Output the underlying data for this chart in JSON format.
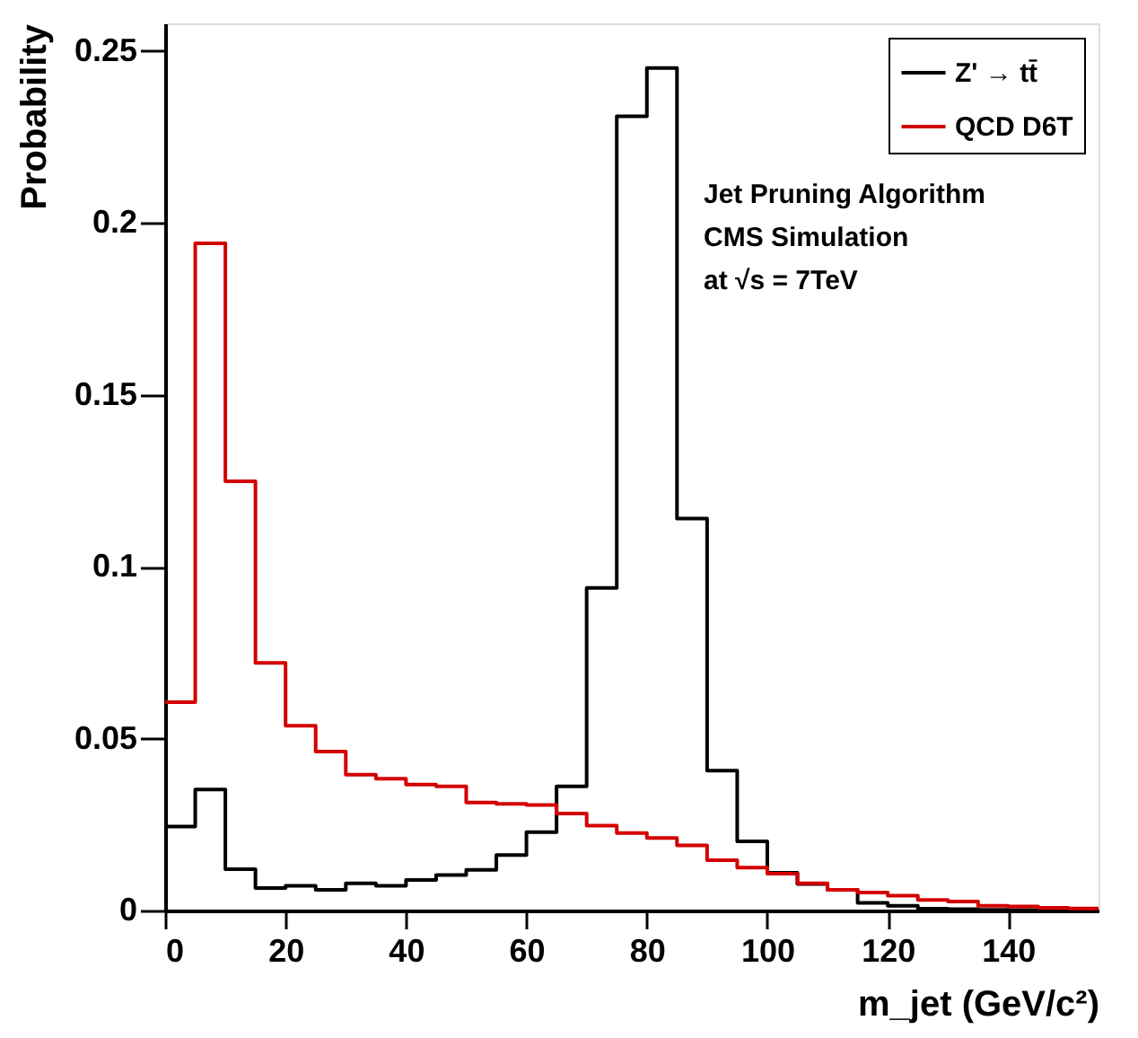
{
  "chart_data": {
    "type": "histogram",
    "xlabel": "m_jet (GeV/c²)",
    "ylabel": "Probability",
    "bins": [
      0,
      5,
      10,
      15,
      20,
      25,
      30,
      35,
      40,
      45,
      50,
      55,
      60,
      65,
      70,
      75,
      80,
      85,
      90,
      95,
      100,
      105,
      110,
      115,
      120,
      125,
      130,
      135,
      140,
      145,
      150,
      155
    ],
    "series": [
      {
        "name": "Z' → tt̄",
        "color": "#000000",
        "values": [
          0.0244,
          0.0352,
          0.012,
          0.0065,
          0.0072,
          0.006,
          0.0079,
          0.0072,
          0.0089,
          0.0103,
          0.0118,
          0.0161,
          0.0228,
          0.0361,
          0.0938,
          0.231,
          0.245,
          0.114,
          0.0407,
          0.0201,
          0.011,
          0.0077,
          0.006,
          0.0022,
          0.0014,
          0.0005,
          0.0004,
          0.0002,
          0.0001,
          0.0001,
          0.0001
        ]
      },
      {
        "name": "QCD D6T",
        "color": "#d40000",
        "values": [
          0.0606,
          0.194,
          0.1248,
          0.072,
          0.0537,
          0.0462,
          0.0395,
          0.0383,
          0.0366,
          0.0361,
          0.0314,
          0.031,
          0.0307,
          0.0282,
          0.0247,
          0.0225,
          0.0211,
          0.0189,
          0.0146,
          0.0125,
          0.0107,
          0.0079,
          0.006,
          0.0052,
          0.0043,
          0.0031,
          0.0026,
          0.0014,
          0.0012,
          0.0008,
          0.0006
        ]
      }
    ],
    "xlim": [
      0,
      155
    ],
    "xticks": [
      0,
      20,
      40,
      60,
      80,
      100,
      120,
      140
    ],
    "ylim": [
      0,
      0.258
    ],
    "yticks": [
      {
        "value": 0,
        "label": "0"
      },
      0.05,
      {
        "value": 0.1,
        "label": "0.1"
      },
      0.15,
      {
        "value": 0.2,
        "label": "0.2"
      },
      0.25
    ],
    "legend": "top right",
    "grid": false,
    "annotations": [
      "Jet Pruning Algorithm",
      "CMS Simulation",
      "at √s = 7TeV"
    ]
  }
}
